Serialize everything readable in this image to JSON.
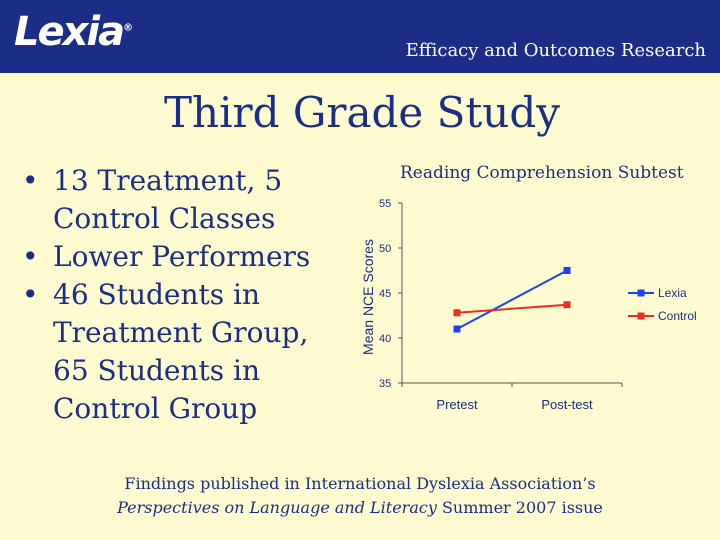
{
  "header": {
    "logo": "Lexia",
    "logo_mark": "®",
    "title": "Efficacy and Outcomes Research"
  },
  "slide": {
    "title": "Third Grade Study"
  },
  "bullets": [
    "13 Treatment, 5 Control Classes",
    "Lower Performers",
    "46 Students in Treatment Group, 65 Students in Control Group"
  ],
  "bullet_lines": [
    [
      "13 Treatment, 5",
      "Control Classes"
    ],
    [
      "Lower Performers"
    ],
    [
      "46 Students in",
      "Treatment Group,",
      "65 Students in",
      "Control Group"
    ]
  ],
  "bullet_symbol": "•",
  "chart_data": {
    "type": "line",
    "title": "Reading Comprehension Subtest",
    "xlabel": "",
    "ylabel": "Mean NCE Scores",
    "categories": [
      "Pretest",
      "Post-test"
    ],
    "ylim": [
      35,
      55
    ],
    "yticks": [
      35,
      40,
      45,
      50,
      55
    ],
    "series": [
      {
        "name": "Lexia",
        "values": [
          41,
          47.5
        ],
        "color": "#1f3fff"
      },
      {
        "name": "Control",
        "values": [
          42.8,
          43.7
        ],
        "color": "#e8301f"
      }
    ],
    "legend": "right"
  },
  "footnote": {
    "line1": "Findings published in International Dyslexia Association’s",
    "line2_italic": "Perspectives on Language and Literacy",
    "line2_rest": " Summer 2007 issue"
  }
}
